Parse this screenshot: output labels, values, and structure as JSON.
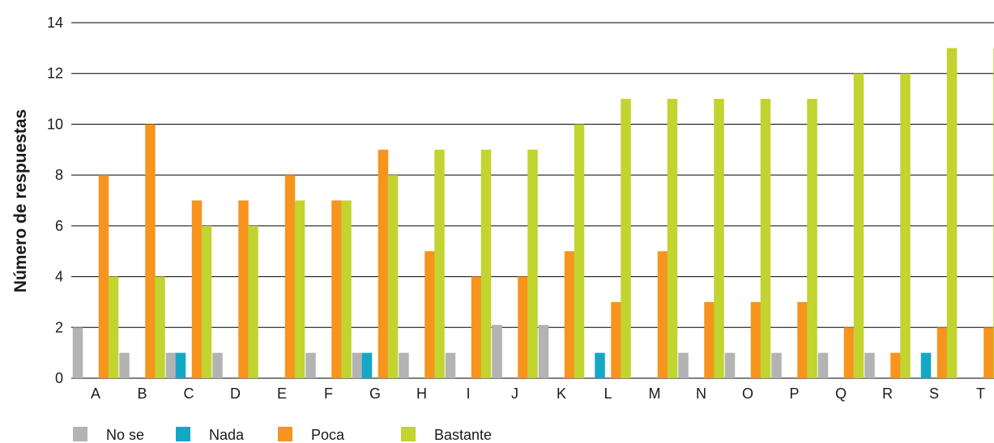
{
  "chart_data": {
    "type": "bar",
    "ylabel": "Número de respuestas",
    "xlabel": "",
    "ylim": [
      0,
      14
    ],
    "yticks": [
      0,
      2,
      4,
      6,
      8,
      10,
      12,
      14
    ],
    "grid": true,
    "legend_position": "bottom-left",
    "categories": [
      "A",
      "B",
      "C",
      "D",
      "E",
      "F",
      "G",
      "H",
      "I",
      "J",
      "K",
      "L",
      "M",
      "N",
      "O",
      "P",
      "Q",
      "R",
      "S",
      "T"
    ],
    "series": [
      {
        "name": "No se",
        "color": "#b3b3b3",
        "values": [
          2,
          1,
          1,
          1,
          0,
          1,
          1,
          1,
          1,
          2.1,
          2.1,
          0,
          0,
          1,
          1,
          1,
          1,
          1,
          0,
          0
        ]
      },
      {
        "name": "Nada",
        "color": "#14a8c7",
        "values": [
          0,
          0,
          1,
          0,
          0,
          0,
          1,
          0,
          0,
          0,
          0,
          1,
          0,
          0,
          0,
          0,
          0,
          0,
          1,
          0
        ]
      },
      {
        "name": "Poca",
        "color": "#f7941d",
        "values": [
          8,
          10,
          7,
          7,
          8,
          7,
          9,
          5,
          4,
          4,
          5,
          3,
          5,
          3,
          3,
          3,
          2,
          1,
          2,
          2
        ]
      },
      {
        "name": "Bastante",
        "color": "#c1d42f",
        "values": [
          4,
          4,
          6,
          6,
          7,
          7,
          8,
          9,
          9,
          9,
          10,
          11,
          11,
          11,
          11,
          11,
          12,
          12,
          13,
          13
        ]
      }
    ]
  }
}
